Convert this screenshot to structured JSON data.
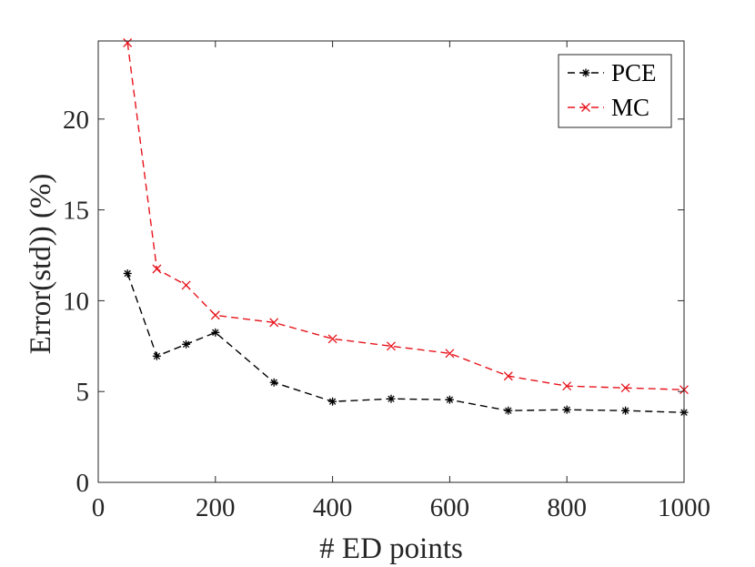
{
  "chart_data": {
    "type": "line",
    "xlabel": "# ED points",
    "ylabel": "Error(std)) (%)",
    "xlim": [
      0,
      1000
    ],
    "ylim": [
      0,
      24.3
    ],
    "xticks": [
      0,
      200,
      400,
      600,
      800,
      1000
    ],
    "xtick_labels": [
      "0",
      "200",
      "400",
      "600",
      "800",
      "1000"
    ],
    "yticks": [
      0,
      5,
      10,
      15,
      20
    ],
    "ytick_labels": [
      "0",
      "5",
      "10",
      "15",
      "20"
    ],
    "grid": false,
    "legend_position": "top-right",
    "x": [
      50,
      100,
      150,
      200,
      300,
      400,
      500,
      600,
      700,
      800,
      900,
      1000
    ],
    "series": [
      {
        "name": "PCE",
        "color": "#000000",
        "marker": "asterisk",
        "line_style": "dashed",
        "values": [
          11.5,
          6.95,
          7.6,
          8.25,
          5.5,
          4.45,
          4.6,
          4.55,
          3.95,
          4.0,
          3.95,
          3.85
        ]
      },
      {
        "name": "MC",
        "color": "#e8131b",
        "marker": "x",
        "line_style": "dashed",
        "values": [
          24.2,
          11.75,
          10.85,
          9.2,
          8.8,
          7.9,
          7.5,
          7.1,
          5.85,
          5.3,
          5.2,
          5.1
        ]
      }
    ]
  }
}
